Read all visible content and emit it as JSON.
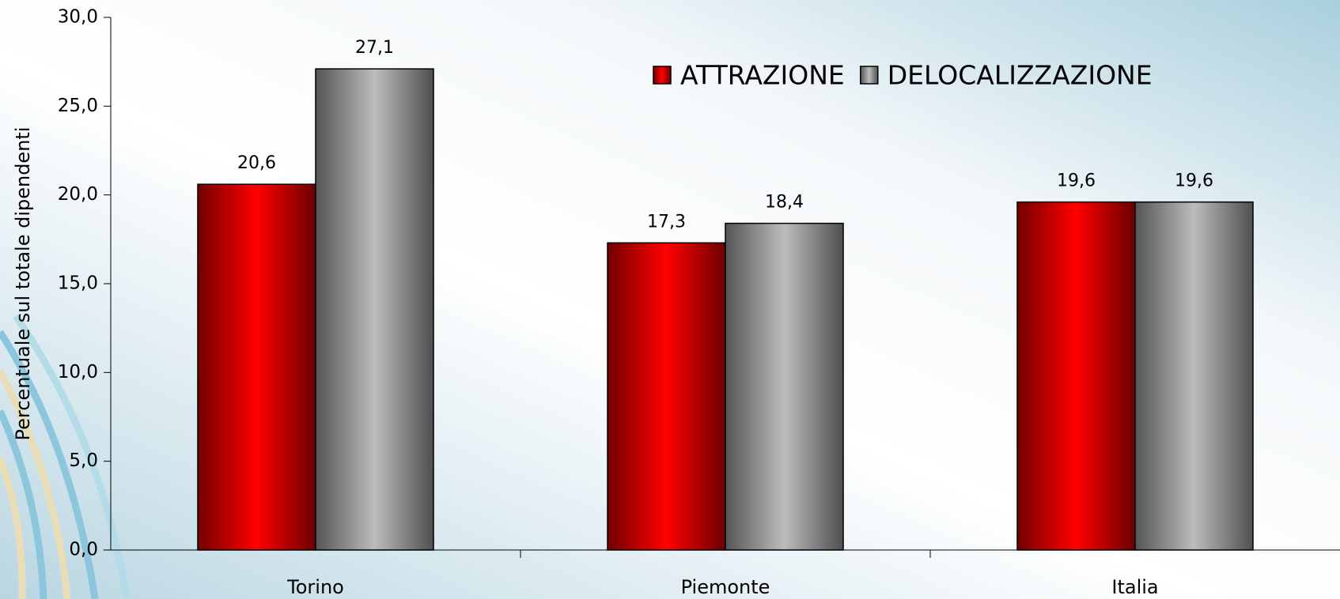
{
  "chart_data": {
    "type": "bar",
    "y_label": "Percentuale sul totale dipendenti",
    "categories": [
      "Torino",
      "Piemonte",
      "Italia"
    ],
    "series": [
      {
        "name": "ATTRAZIONE",
        "color": "#ff0000",
        "values": [
          20.6,
          17.3,
          19.6
        ],
        "value_labels": [
          "20,6",
          "17,3",
          "19,6"
        ]
      },
      {
        "name": "DELOCALIZZAZIONE",
        "color": "#bcbcbc",
        "values": [
          27.1,
          18.4,
          19.6
        ],
        "value_labels": [
          "27,1",
          "18,4",
          "19,6"
        ]
      }
    ],
    "ylim": [
      0,
      30
    ],
    "yticks": [
      {
        "value": 0,
        "label": "0,0"
      },
      {
        "value": 5,
        "label": "5,0"
      },
      {
        "value": 10,
        "label": "10,0"
      },
      {
        "value": 15,
        "label": "15,0"
      },
      {
        "value": 20,
        "label": "20,0"
      },
      {
        "value": 25,
        "label": "25,0"
      },
      {
        "value": 30,
        "label": "30,0"
      }
    ],
    "legend": "top-right"
  }
}
